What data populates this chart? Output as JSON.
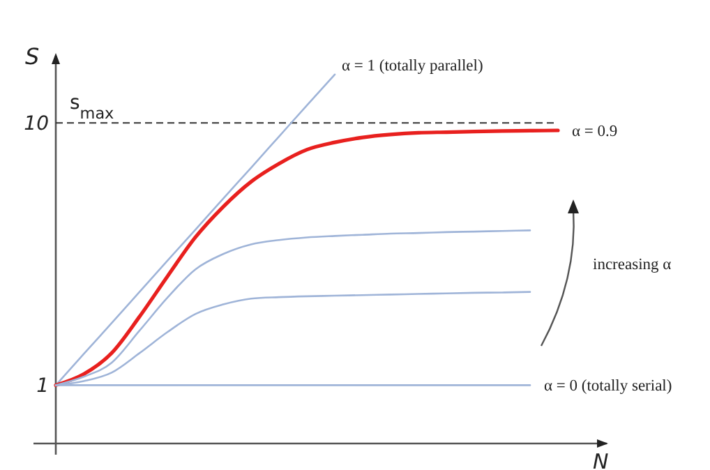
{
  "chart_data": {
    "type": "line",
    "xlabel": "N",
    "ylabel": "S",
    "categories": [
      null,
      null,
      null,
      null,
      null,
      null,
      null,
      null,
      null,
      null,
      null,
      null,
      null,
      null,
      null,
      null,
      null,
      null,
      null
    ],
    "series": [
      {
        "name": "α = 1 (totally parallel)",
        "color": "#9fb4d8",
        "values": [
          1,
          2.07,
          3.13,
          4.2,
          5.27,
          6.33,
          7.4,
          8.46,
          9.53,
          10.6,
          11.66,
          null,
          null,
          null,
          null,
          null,
          null,
          null,
          null
        ]
      },
      {
        "name": "α = 0.9",
        "color": "#e8201e",
        "values": [
          1,
          1.38,
          2.1,
          3.35,
          4.73,
          6.07,
          7.12,
          7.98,
          8.6,
          9.08,
          9.33,
          9.5,
          9.6,
          9.66,
          9.68,
          9.7,
          9.72,
          9.73,
          9.74
        ]
      },
      {
        "color": "#9fb4d8",
        "values": [
          1,
          1.29,
          1.77,
          2.87,
          4.0,
          4.97,
          5.5,
          5.83,
          5.98,
          6.07,
          6.12,
          6.16,
          6.2,
          6.22,
          6.25,
          6.27,
          6.29,
          6.31,
          null
        ]
      },
      {
        "color": "#9fb4d8",
        "values": [
          1,
          1.14,
          1.43,
          2.1,
          2.82,
          3.44,
          3.77,
          3.97,
          4.02,
          4.05,
          4.07,
          4.09,
          4.11,
          4.13,
          4.15,
          4.17,
          4.18,
          4.2,
          null
        ]
      },
      {
        "name": "α = 0 (totally serial)",
        "color": "#9fb4d8",
        "values": [
          1,
          1,
          1,
          1,
          1,
          1,
          1,
          1,
          1,
          1,
          1,
          1,
          1,
          1,
          1,
          1,
          1,
          1,
          null
        ]
      }
    ],
    "ylim": [
      -1,
      12.3
    ],
    "yticks": [
      1,
      10
    ],
    "tick_labels": "y",
    "grid": false,
    "marker": "none",
    "line_style": "solid",
    "ref_lines": [
      {
        "axis": "y",
        "value": 10,
        "label": "s$_{max}$",
        "color": "#333333",
        "line_style": "dashed"
      }
    ],
    "annotations": [
      "increasing α"
    ]
  }
}
